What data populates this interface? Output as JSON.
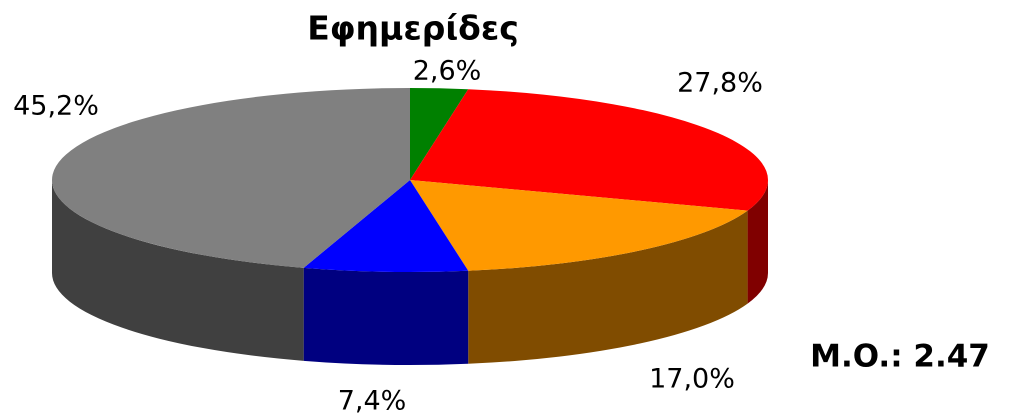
{
  "chart_data": {
    "type": "pie3d",
    "title": "Εφημερίδες",
    "values": [
      2.6,
      27.8,
      17.0,
      7.4,
      45.2
    ],
    "value_labels": [
      "2,6%",
      "27,8%",
      "17,0%",
      "7,4%",
      "45,2%"
    ],
    "colors": [
      "#008000",
      "#ff0000",
      "#ff9900",
      "#0000ff",
      "#808080"
    ],
    "side_colors": [
      "#004000",
      "#800000",
      "#804c00",
      "#000080",
      "#404040"
    ],
    "annotation": "M.O.: 2.47"
  }
}
